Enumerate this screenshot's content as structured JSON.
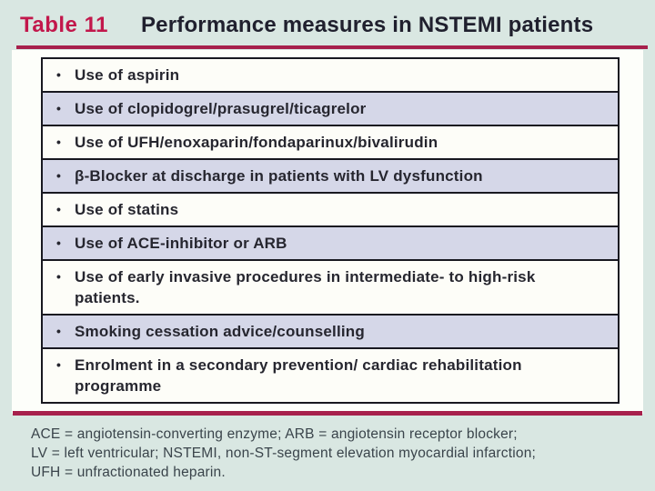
{
  "title": {
    "label": "Table 11",
    "text": "Performance measures in NSTEMI patients"
  },
  "table": {
    "bullet_icon": "•",
    "rows": [
      {
        "text": "Use of aspirin",
        "shaded": false
      },
      {
        "text": "Use of clopidogrel/prasugrel/ticagrelor",
        "shaded": true
      },
      {
        "text": "Use of UFH/enoxaparin/fondaparinux/bivalirudin",
        "shaded": false
      },
      {
        "text": "β-Blocker at discharge in patients with LV dysfunction",
        "shaded": true
      },
      {
        "text": "Use of statins",
        "shaded": false
      },
      {
        "text": "Use of ACE-inhibitor or ARB",
        "shaded": true
      },
      {
        "text": "Use of early invasive procedures in intermediate- to high-risk\npatients.",
        "shaded": false
      },
      {
        "text": "Smoking cessation advice/counselling",
        "shaded": true
      },
      {
        "text": "Enrolment in a secondary prevention/ cardiac rehabilitation\nprogramme",
        "shaded": false
      }
    ]
  },
  "footnotes": [
    "ACE = angiotensin-converting enzyme; ARB = angiotensin receptor blocker;",
    "LV = left ventricular; NSTEMI, non-ST-segment elevation myocardial infarction;",
    "UFH = unfractionated heparin."
  ],
  "colors": {
    "accent_red": "#c2174b",
    "rule_red": "#a7204c",
    "row_shaded": "#d5d7e8",
    "row_plain": "#fdfdf8",
    "page_background": "#d9e7e2",
    "panel_white": "#fdfefa",
    "border_black": "#181820",
    "row_text": "#26262f",
    "footnote_text": "#3a444b"
  }
}
